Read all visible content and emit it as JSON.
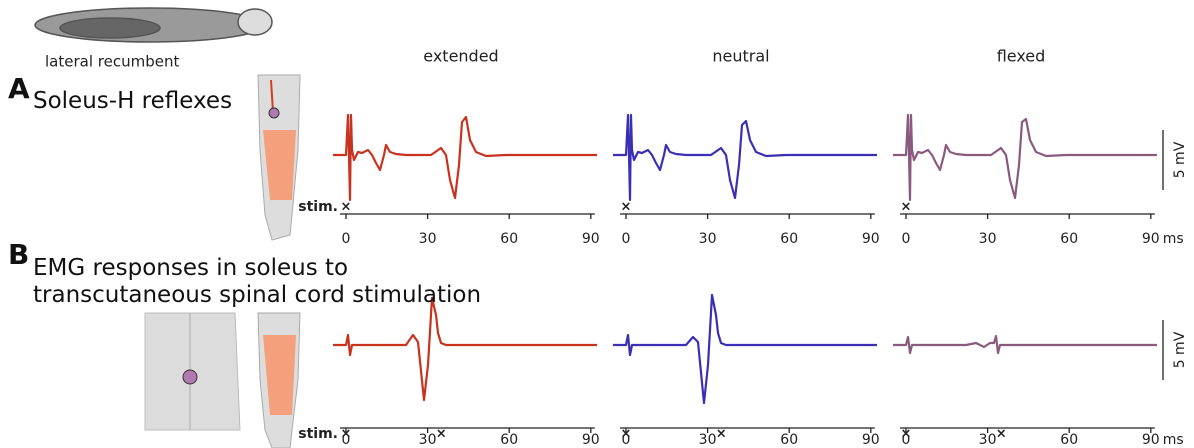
{
  "posture": "lateral recumbent",
  "columns": [
    "extended",
    "neutral",
    "flexed"
  ],
  "trace_colors": [
    "#c8321e",
    "#3a2fb5",
    "#8a5a7e"
  ],
  "panels": [
    {
      "letter": "A",
      "title": "Soleus-H reflexes",
      "stim_label": "stim.",
      "stim_times": [
        0
      ]
    },
    {
      "letter": "B",
      "title": "EMG responses in soleus to transcutaneous spinal cord stimulation",
      "stim_label": "stim.",
      "stim_times": [
        0,
        35
      ]
    }
  ],
  "x_ticks": [
    0,
    30,
    60,
    90
  ],
  "x_unit": "ms",
  "scale_bar": "5 mV"
}
